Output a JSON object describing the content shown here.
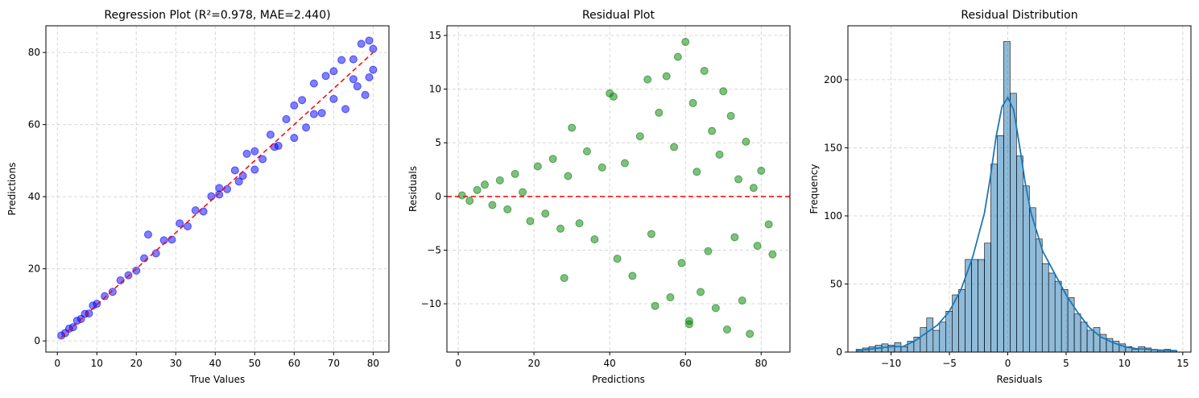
{
  "chart_data": [
    {
      "type": "scatter",
      "title": "Regression Plot (R²=0.978, MAE=2.440)",
      "xlabel": "True Values",
      "ylabel": "Predictions",
      "xlim": [
        -2.9,
        84.0
      ],
      "ylim": [
        -3.1,
        87.4
      ],
      "xticks": [
        0,
        10,
        20,
        30,
        40,
        50,
        60,
        70,
        80
      ],
      "yticks": [
        0,
        20,
        40,
        60,
        80
      ],
      "grid": true,
      "color": "#0000ff",
      "x": [
        1,
        2,
        3,
        4,
        5,
        6,
        7,
        8,
        9,
        10,
        12,
        14,
        16,
        18,
        20,
        22,
        23,
        25,
        27,
        29,
        31,
        33,
        35,
        37,
        39,
        41,
        43,
        45,
        47,
        48,
        50,
        52,
        54,
        56,
        58,
        60,
        62,
        63,
        65,
        67,
        68,
        70,
        72,
        73,
        75,
        76,
        77,
        78,
        79,
        80,
        80,
        79,
        75,
        70,
        65,
        60,
        55,
        50,
        46,
        41
      ],
      "y": [
        1.5,
        2.2,
        3.4,
        3.8,
        5.6,
        6.1,
        7.5,
        7.6,
        9.8,
        10.3,
        12.4,
        13.6,
        16.8,
        18.2,
        19.5,
        22.9,
        29.5,
        24.3,
        27.9,
        28.1,
        32.6,
        31.8,
        36.2,
        35.9,
        40.1,
        42.4,
        42.1,
        47.3,
        45.8,
        51.9,
        52.6,
        50.4,
        57.2,
        54.1,
        61.5,
        56.3,
        66.8,
        59.2,
        71.4,
        63.2,
        73.5,
        67.1,
        77.9,
        64.3,
        78.1,
        70.6,
        82.4,
        68.2,
        83.3,
        75.2,
        81.0,
        73.1,
        72.6,
        74.8,
        62.9,
        65.3,
        53.8,
        47.5,
        44.2,
        40.6
      ],
      "reference_line": {
        "color": "#ff0000",
        "x": [
          1,
          80
        ],
        "y": [
          1,
          80
        ]
      }
    },
    {
      "type": "scatter",
      "title": "Residual Plot",
      "xlabel": "Predictions",
      "ylabel": "Residuals",
      "xlim": [
        -3.0,
        87.6
      ],
      "ylim": [
        -14.5,
        15.9
      ],
      "xticks": [
        0,
        20,
        40,
        60,
        80
      ],
      "yticks": [
        {
          "value": -10,
          "label": "−10"
        },
        {
          "value": -5,
          "label": "−5"
        },
        0,
        5,
        10,
        15
      ],
      "grid": true,
      "color": "#008000",
      "x": [
        1,
        3,
        5,
        7,
        9,
        11,
        13,
        15,
        17,
        19,
        21,
        23,
        25,
        27,
        29,
        30,
        32,
        34,
        36,
        38,
        40,
        42,
        44,
        46,
        48,
        50,
        51,
        53,
        55,
        56,
        57,
        58,
        59,
        60,
        61,
        62,
        63,
        64,
        65,
        66,
        67,
        68,
        69,
        70,
        71,
        72,
        73,
        74,
        75,
        76,
        77,
        78,
        79,
        80,
        82,
        83,
        28,
        41,
        52,
        61
      ],
      "y": [
        0.1,
        -0.4,
        0.6,
        1.1,
        -0.8,
        1.5,
        -1.2,
        2.1,
        0.4,
        -2.3,
        2.8,
        -1.6,
        3.5,
        -3.0,
        1.9,
        6.4,
        -2.5,
        4.2,
        -4.0,
        2.7,
        9.6,
        -5.8,
        3.1,
        -7.4,
        5.6,
        10.9,
        -3.5,
        7.8,
        11.2,
        -9.4,
        4.6,
        13.0,
        -6.2,
        14.4,
        -11.6,
        8.7,
        2.3,
        -8.9,
        11.7,
        -5.1,
        6.1,
        -10.4,
        3.9,
        9.8,
        -12.4,
        7.5,
        -3.8,
        1.6,
        -9.7,
        5.1,
        -12.8,
        0.8,
        -4.6,
        2.4,
        -2.6,
        -5.4,
        -7.6,
        9.3,
        -10.2,
        -11.9
      ],
      "hline": 0,
      "hline_color": "#ff0000"
    },
    {
      "type": "histogram",
      "title": "Residual Distribution",
      "xlabel": "Residuals",
      "ylabel": "Frequency",
      "xlim": [
        -13.7,
        15.7
      ],
      "ylim": [
        0,
        239.6
      ],
      "xticks": [
        {
          "value": -10,
          "label": "−10"
        },
        {
          "value": -5,
          "label": "−5"
        },
        0,
        5,
        10,
        15
      ],
      "yticks": [
        0,
        50,
        100,
        150,
        200
      ],
      "grid": true,
      "color": "#1f77b4",
      "bins": [
        -13,
        -12.45,
        -11.9,
        -11.35,
        -10.8,
        -10.25,
        -9.7,
        -9.15,
        -8.6,
        -8.05,
        -7.5,
        -6.95,
        -6.4,
        -5.85,
        -5.3,
        -4.75,
        -4.2,
        -3.65,
        -3.1,
        -2.55,
        -2,
        -1.45,
        -0.9,
        -0.35,
        0.2,
        0.75,
        1.3,
        1.85,
        2.4,
        2.95,
        3.5,
        4.05,
        4.6,
        5.15,
        5.7,
        6.25,
        6.8,
        7.35,
        7.9,
        8.45,
        9,
        9.55,
        10.1,
        10.65,
        11.2,
        11.75,
        12.3,
        12.85,
        13.4,
        13.95,
        14.5
      ],
      "counts": [
        2,
        3,
        4,
        5,
        6,
        5,
        7,
        4,
        8,
        11,
        18,
        25,
        16,
        22,
        30,
        42,
        46,
        68,
        68,
        68,
        80,
        138,
        159,
        228,
        190,
        144,
        122,
        106,
        83,
        65,
        58,
        52,
        46,
        40,
        28,
        22,
        16,
        18,
        13,
        10,
        8,
        6,
        4,
        2,
        4,
        3,
        2,
        1,
        2,
        1
      ],
      "kde": {
        "x": [
          -13,
          -11,
          -10,
          -9,
          -8,
          -7,
          -6,
          -5,
          -4,
          -3,
          -2,
          -1.5,
          -1,
          -0.5,
          0,
          0.5,
          1,
          1.5,
          2,
          3,
          4,
          5,
          6,
          7,
          8,
          9,
          10,
          11,
          12,
          13,
          14.5
        ],
        "y": [
          1,
          3,
          4,
          4,
          8,
          14,
          20,
          30,
          46,
          70,
          102,
          128,
          158,
          180,
          187,
          178,
          152,
          124,
          102,
          74,
          58,
          42,
          29,
          18,
          11,
          7,
          4,
          2.5,
          2,
          1.5,
          1
        ]
      }
    }
  ]
}
